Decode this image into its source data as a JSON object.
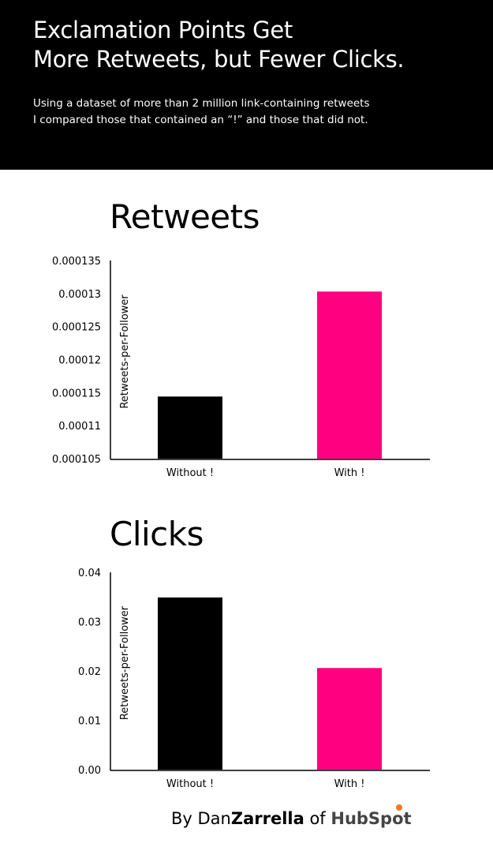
{
  "header": {
    "title_line1": "Exclamation Points Get",
    "title_line2": "More Retweets, but Fewer Clicks.",
    "subtitle_line1": "Using a dataset of more than 2 million link-containing retweets",
    "subtitle_line2": "I compared those that contained an “!” and those that did not."
  },
  "chart_data": [
    {
      "type": "bar",
      "title": "Retweets",
      "ylabel": "Retweets-per-Follower",
      "xlabel": "",
      "categories": [
        "Without !",
        "With !"
      ],
      "values": [
        0.0001144,
        0.0001303
      ],
      "colors": [
        "#000000",
        "#ff0080"
      ],
      "ylim": [
        0.000105,
        0.000135
      ],
      "yticks": [
        "0.000105",
        "0.00011",
        "0.000115",
        "0.00012",
        "0.000125",
        "0.00013",
        "0.000135"
      ],
      "grid": false
    },
    {
      "type": "bar",
      "title": "Clicks",
      "ylabel": "Retweets-per-Follower",
      "xlabel": "",
      "categories": [
        "Without !",
        "With !"
      ],
      "values": [
        0.0349,
        0.0206
      ],
      "colors": [
        "#000000",
        "#ff0080"
      ],
      "ylim": [
        0,
        0.04
      ],
      "yticks": [
        "0.00",
        "0.01",
        "0.02",
        "0.03",
        "0.04"
      ],
      "grid": false
    }
  ],
  "footer": {
    "by": "By Dan",
    "author_bold": "Zarrella",
    "of": " of ",
    "brand": "HubSpot",
    "brand_color": "#f57722"
  }
}
